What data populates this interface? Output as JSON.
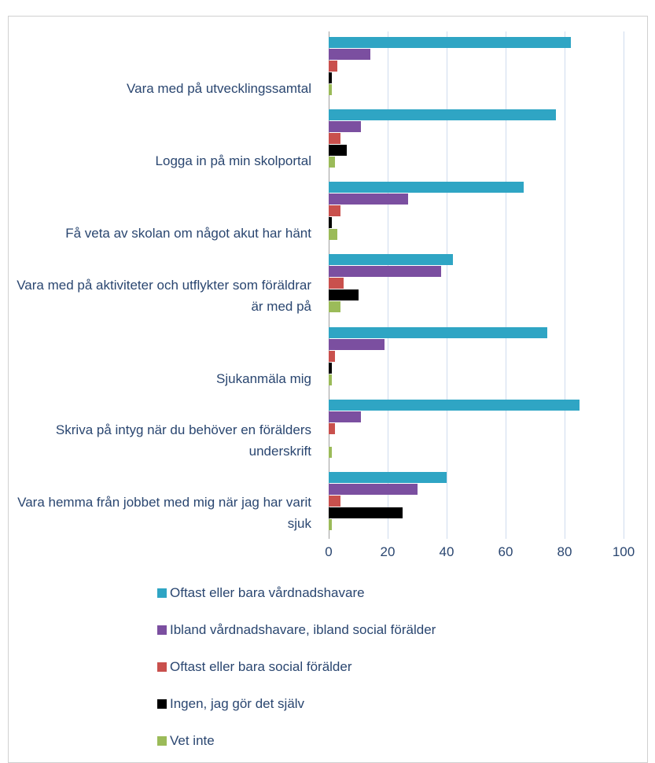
{
  "chart_data": {
    "type": "bar",
    "orientation": "horizontal",
    "categories": [
      "Vara med på utvecklingssamtal",
      "Logga in på min skolportal",
      "Få veta av skolan om något akut har hänt",
      "Vara med på aktiviteter och utflykter som föräldrar är med på",
      "Sjukanmäla mig",
      "Skriva på intyg när du behöver en förälders underskrift",
      "Vara hemma från jobbet med mig när jag har varit sjuk"
    ],
    "series": [
      {
        "name": "Oftast eller bara vårdnadshavare",
        "color": "#2fa5c4",
        "values": [
          82,
          77,
          66,
          42,
          74,
          85,
          40
        ]
      },
      {
        "name": "Ibland vårdnadshavare, ibland social förälder",
        "color": "#7b4fa0",
        "values": [
          14,
          11,
          27,
          38,
          19,
          11,
          30
        ]
      },
      {
        "name": "Oftast eller bara social förälder",
        "color": "#c9504d",
        "values": [
          3,
          4,
          4,
          5,
          2,
          2,
          4
        ]
      },
      {
        "name": "Ingen, jag gör det själv",
        "color": "#000000",
        "values": [
          1,
          6,
          1,
          10,
          1,
          0,
          25
        ]
      },
      {
        "name": "Vet inte",
        "color": "#9bbb59",
        "values": [
          1,
          2,
          3,
          4,
          1,
          1,
          1
        ]
      }
    ],
    "xlim": [
      0,
      100
    ],
    "xticks": [
      0,
      20,
      40,
      60,
      80,
      100
    ],
    "grid": true,
    "legend": "bottom"
  }
}
